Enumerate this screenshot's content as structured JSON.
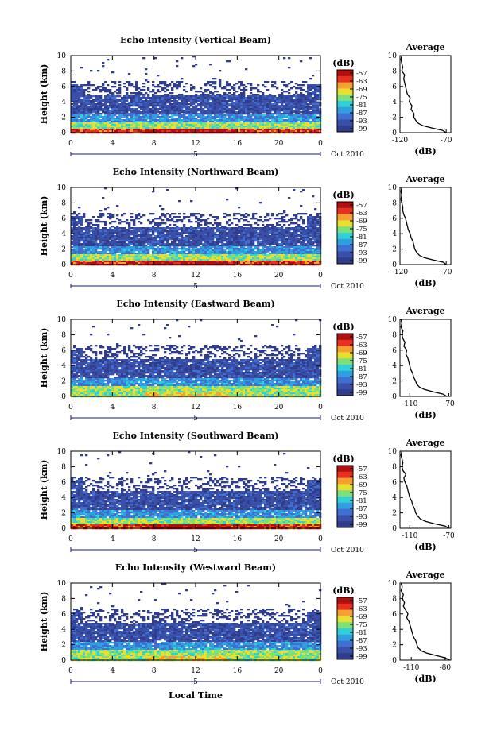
{
  "chart_data": [
    {
      "type": "heatmap",
      "title": "Echo Intensity (Vertical Beam)",
      "ylabel": "Height (km)",
      "xticks": [
        "0",
        "4",
        "8",
        "12",
        "16",
        "20",
        "0"
      ],
      "yticks": [
        "0",
        "2",
        "4",
        "6",
        "8",
        "10"
      ],
      "date_label": "Oct 2010",
      "date_day": "5",
      "xlim": [
        0,
        24
      ],
      "ylim": [
        0,
        10
      ],
      "colorbar": {
        "unit": "(dB)",
        "ticks": [
          "-57",
          "-63",
          "-69",
          "-75",
          "-81",
          "-87",
          "-93",
          "-99"
        ]
      },
      "average": {
        "title": "Average",
        "xlabel": "(dB)",
        "xticks": [
          "-120",
          "-70"
        ],
        "xlim": [
          -120,
          -65
        ],
        "profile_h": [
          0,
          0.3,
          0.6,
          0.9,
          1.2,
          1.6,
          2,
          2.5,
          3,
          3.5,
          4,
          4.5,
          5,
          5.5,
          6,
          6.5,
          7,
          7.5,
          8,
          8.5,
          9,
          9.5,
          10
        ],
        "profile_db": [
          -70,
          -74,
          -85,
          -95,
          -100,
          -103,
          -105,
          -105,
          -108,
          -107,
          -110,
          -109,
          -112,
          -113,
          -114,
          -115,
          -116,
          -115,
          -118,
          -117,
          -118,
          -119,
          -118
        ]
      }
    },
    {
      "type": "heatmap",
      "title": "Echo Intensity (Northward Beam)",
      "ylabel": "Height (km)",
      "xticks": [
        "0",
        "4",
        "8",
        "12",
        "16",
        "20",
        "0"
      ],
      "yticks": [
        "0",
        "2",
        "4",
        "6",
        "8",
        "10"
      ],
      "date_label": "Oct 2010",
      "date_day": "5",
      "xlim": [
        0,
        24
      ],
      "ylim": [
        0,
        10
      ],
      "colorbar": {
        "unit": "(dB)",
        "ticks": [
          "-57",
          "-63",
          "-69",
          "-75",
          "-81",
          "-87",
          "-93",
          "-99"
        ]
      },
      "average": {
        "title": "Average",
        "xlabel": "(dB)",
        "xticks": [
          "-120",
          "-70"
        ],
        "xlim": [
          -120,
          -65
        ],
        "profile_h": [
          0,
          0.3,
          0.6,
          0.9,
          1.2,
          1.6,
          2,
          2.5,
          3,
          3.5,
          4,
          4.5,
          5,
          5.5,
          6,
          6.5,
          7,
          7.5,
          8,
          8.5,
          9,
          9.5,
          10
        ],
        "profile_db": [
          -70,
          -73,
          -84,
          -94,
          -99,
          -102,
          -104,
          -105,
          -106,
          -108,
          -109,
          -111,
          -112,
          -113,
          -114,
          -116,
          -117,
          -117,
          -118,
          -119,
          -118,
          -119,
          -118
        ]
      }
    },
    {
      "type": "heatmap",
      "title": "Echo Intensity (Eastward Beam)",
      "ylabel": "Height (km)",
      "xticks": [
        "0",
        "4",
        "8",
        "12",
        "16",
        "20",
        "0"
      ],
      "yticks": [
        "0",
        "2",
        "4",
        "6",
        "8",
        "10"
      ],
      "date_label": "Oct 2010",
      "date_day": "5",
      "xlim": [
        0,
        24
      ],
      "ylim": [
        0,
        10
      ],
      "colorbar": {
        "unit": "(dB)",
        "ticks": [
          "-57",
          "-63",
          "-69",
          "-75",
          "-81",
          "-87",
          "-93",
          "-99"
        ]
      },
      "average": {
        "title": "Average",
        "xlabel": "(dB)",
        "xticks": [
          "-110",
          "-70"
        ],
        "xlim": [
          -120,
          -68
        ],
        "profile_h": [
          0,
          0.3,
          0.6,
          0.9,
          1.2,
          1.6,
          2,
          2.5,
          3,
          3.5,
          4,
          4.5,
          5,
          5.5,
          6,
          6.5,
          7,
          7.5,
          8,
          8.5,
          9,
          9.5,
          10
        ],
        "profile_db": [
          -72,
          -76,
          -86,
          -95,
          -100,
          -103,
          -104,
          -106,
          -107,
          -109,
          -110,
          -111,
          -112,
          -114,
          -113,
          -116,
          -115,
          -117,
          -118,
          -117,
          -119,
          -118,
          -119
        ]
      }
    },
    {
      "type": "heatmap",
      "title": "Echo Intensity (Southward Beam)",
      "ylabel": "Height (km)",
      "xticks": [
        "0",
        "4",
        "8",
        "12",
        "16",
        "20",
        "0"
      ],
      "yticks": [
        "0",
        "2",
        "4",
        "6",
        "8",
        "10"
      ],
      "date_label": "Oct 2010",
      "date_day": "5",
      "xlim": [
        0,
        24
      ],
      "ylim": [
        0,
        10
      ],
      "colorbar": {
        "unit": "(dB)",
        "ticks": [
          "-57",
          "-63",
          "-69",
          "-75",
          "-81",
          "-87",
          "-93",
          "-99"
        ]
      },
      "average": {
        "title": "Average",
        "xlabel": "(dB)",
        "xticks": [
          "-110",
          "-70"
        ],
        "xlim": [
          -120,
          -68
        ],
        "profile_h": [
          0,
          0.3,
          0.6,
          0.9,
          1.2,
          1.6,
          2,
          2.5,
          3,
          3.5,
          4,
          4.5,
          5,
          5.5,
          6,
          6.5,
          7,
          7.5,
          8,
          8.5,
          9,
          9.5,
          10
        ],
        "profile_db": [
          -70,
          -74,
          -85,
          -94,
          -99,
          -102,
          -104,
          -105,
          -107,
          -108,
          -110,
          -111,
          -112,
          -113,
          -115,
          -116,
          -114,
          -117,
          -118,
          -117,
          -118,
          -119,
          -118
        ]
      }
    },
    {
      "type": "heatmap",
      "title": "Echo Intensity (Westward Beam)",
      "ylabel": "Height (km)",
      "xticks": [
        "0",
        "4",
        "8",
        "12",
        "16",
        "20",
        "0"
      ],
      "yticks": [
        "0",
        "2",
        "4",
        "6",
        "8",
        "10"
      ],
      "date_label": "Oct 2010",
      "date_day": "5",
      "xlim": [
        0,
        24
      ],
      "ylim": [
        0,
        10
      ],
      "colorbar": {
        "unit": "(dB)",
        "ticks": [
          "-57",
          "-63",
          "-69",
          "-75",
          "-81",
          "-87",
          "-93",
          "-99"
        ]
      },
      "average": {
        "title": "Average",
        "xlabel": "(dB)",
        "xticks": [
          "-110",
          "-80"
        ],
        "xlim": [
          -120,
          -75
        ],
        "profile_h": [
          0,
          0.3,
          0.6,
          0.9,
          1.2,
          1.6,
          2,
          2.5,
          3,
          3.5,
          4,
          4.5,
          5,
          5.5,
          6,
          6.5,
          7,
          7.5,
          8,
          8.5,
          9,
          9.5,
          10
        ],
        "profile_db": [
          -76,
          -80,
          -88,
          -96,
          -101,
          -104,
          -105,
          -106,
          -108,
          -109,
          -110,
          -111,
          -112,
          -114,
          -113,
          -115,
          -117,
          -116,
          -118,
          -117,
          -119,
          -118,
          -119
        ]
      }
    }
  ],
  "common": {
    "xlabel": "Local Time"
  },
  "colors": {
    "scale": [
      "#303c8c",
      "#3a4fa8",
      "#3f6fd0",
      "#2f9fe0",
      "#30d0d8",
      "#7de07a",
      "#e8e030",
      "#f5a030",
      "#e83020",
      "#b01010"
    ]
  }
}
